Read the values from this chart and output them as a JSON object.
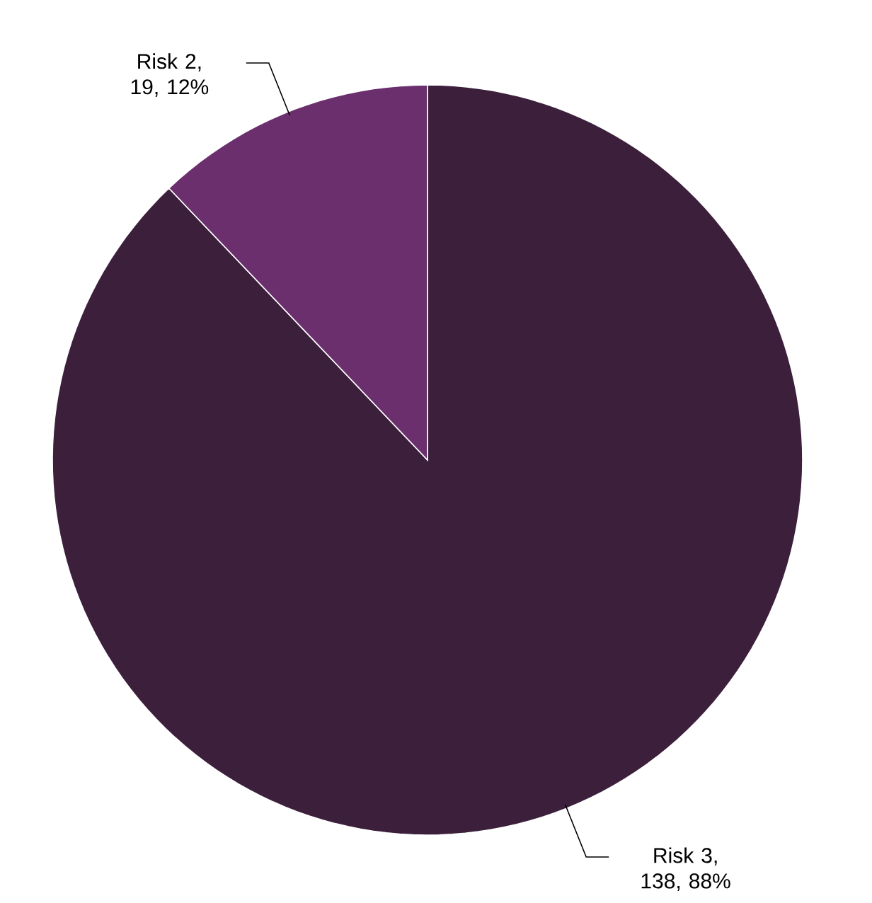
{
  "chart_data": {
    "type": "pie",
    "categories": [
      "Risk 3",
      "Risk 2"
    ],
    "values": [
      138,
      19
    ],
    "value_labels": [
      ", 138, 88%",
      ", 19, 12%"
    ],
    "colors": [
      "#3b1f3b",
      "#6b2f6e"
    ]
  }
}
